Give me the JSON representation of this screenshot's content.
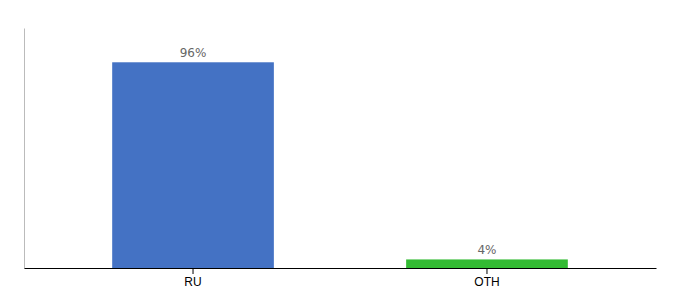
{
  "chart_data": {
    "type": "bar",
    "categories": [
      "RU",
      "OTH"
    ],
    "values": [
      96,
      4
    ],
    "value_labels": [
      "96%",
      "4%"
    ],
    "colors": [
      "#4472c4",
      "#33bb33"
    ],
    "ylim": [
      0,
      112
    ],
    "data_labels": true,
    "tick_labels": "x"
  }
}
